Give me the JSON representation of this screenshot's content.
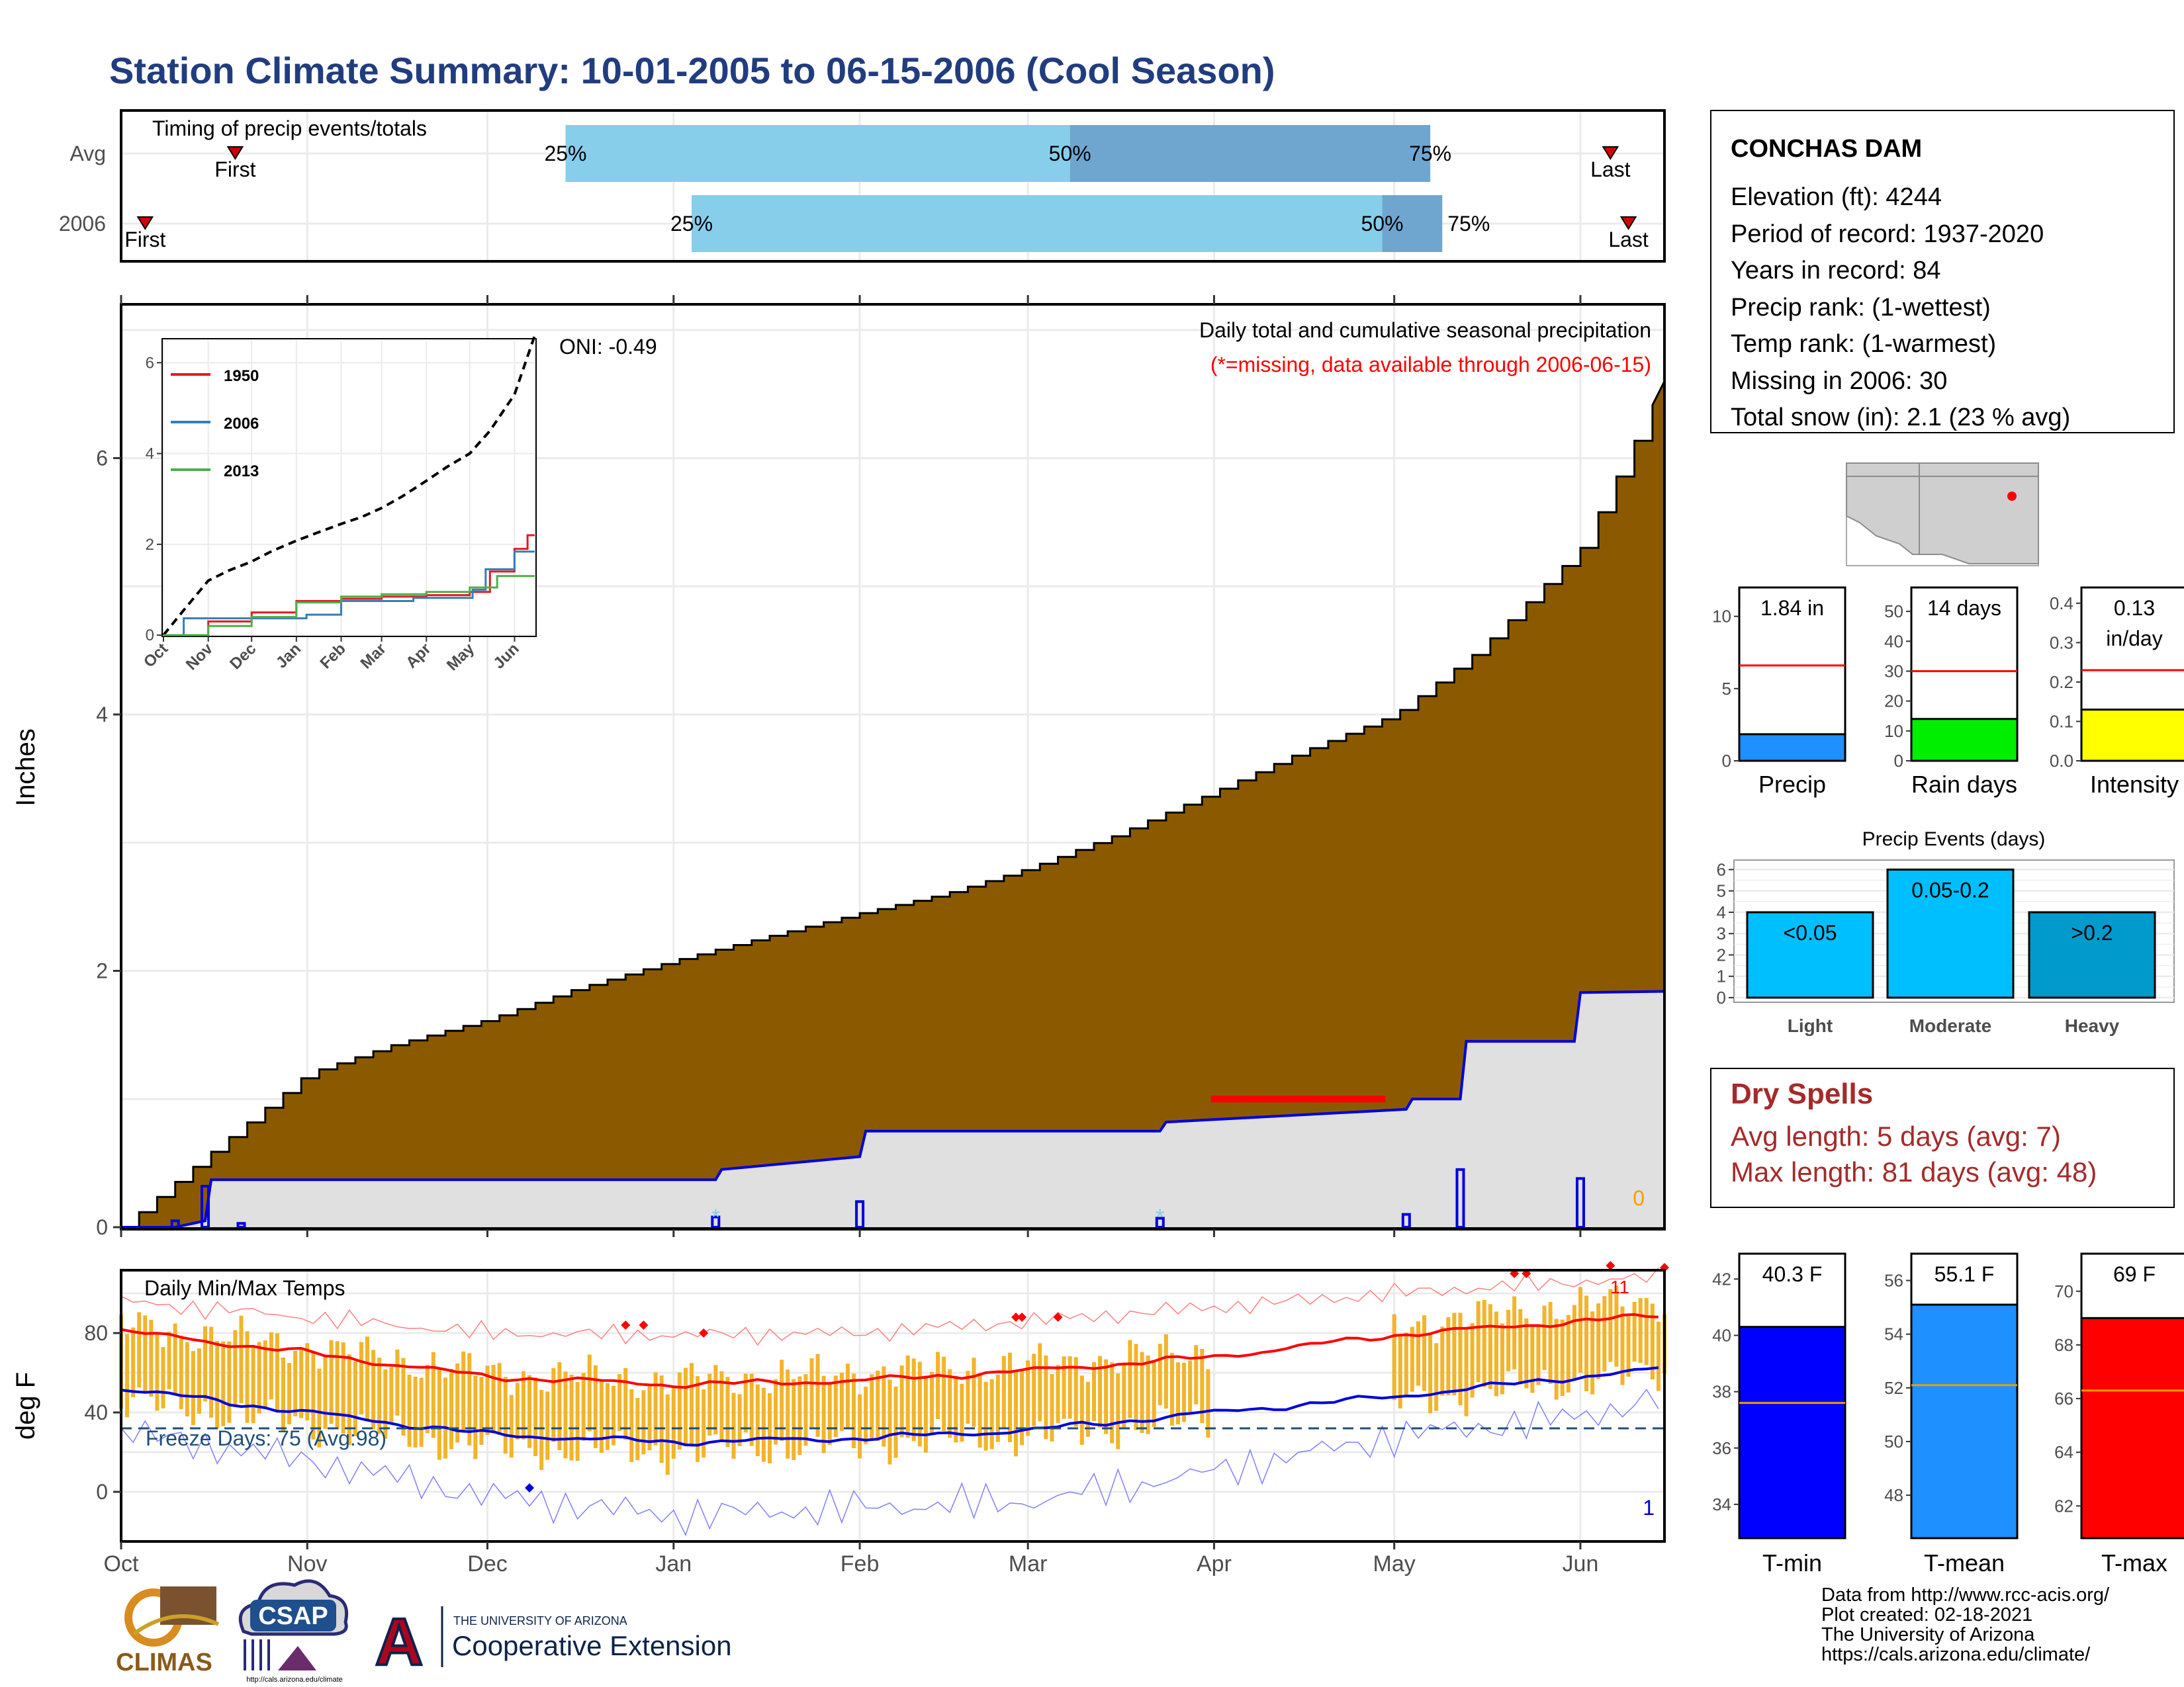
{
  "page_title": "Station Climate Summary: 10-01-2005 to 06-15-2006 (Cool Season)",
  "colors": {
    "title": "#213d7f",
    "precip_area": "#8b5a00",
    "gray_fill": "#e0e0e0",
    "light_blue": "#87ceeb",
    "mid_blue": "#6fa6cf",
    "temp_bar": "#f2b42a",
    "dry_spells": "#a52a2a",
    "freeze": "#1f4e79"
  },
  "station": {
    "name": "CONCHAS DAM",
    "lines": [
      "Elevation (ft): 4244",
      "Period of record: 1937-2020",
      "Years in record: 84",
      "Precip rank:  (1-wettest)",
      "Temp rank:  (1-warmest)",
      "Missing in 2006: 30",
      "Total snow (in): 2.1 (23 % avg)"
    ]
  },
  "timing": {
    "title": "Timing of precip events/totals",
    "rows": [
      {
        "label": "Avg",
        "first": "First",
        "last": "Last",
        "q25": "25%",
        "q50": "50%",
        "q75": "75%"
      },
      {
        "label": "2006",
        "first": "First",
        "last": "Last",
        "q25": "25%",
        "q50": "50%",
        "q75": "75%"
      }
    ]
  },
  "precip_panel": {
    "title": "Daily total and cumulative seasonal precipitation",
    "missing_note": "(*=missing, data available through 2006-06-15)",
    "oni": "ONI: -0.49",
    "ylabel": "Inches",
    "yticks": [
      "0",
      "2",
      "4",
      "6"
    ],
    "corner_value": "0"
  },
  "inset": {
    "legend": [
      "1950",
      "2006",
      "2013"
    ],
    "yticks": [
      "0",
      "2",
      "4",
      "6"
    ],
    "xticks": [
      "Oct",
      "Nov",
      "Dec",
      "Jan",
      "Feb",
      "Mar",
      "Apr",
      "May",
      "Jun"
    ]
  },
  "temp_panel": {
    "title": "Daily Min/Max Temps",
    "ylabel": "deg F",
    "yticks": [
      "0",
      "40",
      "80"
    ],
    "freeze": "Freeze Days: 75 (Avg:98)",
    "corner_low": "1",
    "corner_high": "11"
  },
  "months": [
    "Oct",
    "Nov",
    "Dec",
    "Jan",
    "Feb",
    "Mar",
    "Apr",
    "May",
    "Jun"
  ],
  "chart_data": [
    {
      "type": "bar",
      "title": "Timing of precip events/totals",
      "categories": [
        "Avg",
        "2006"
      ],
      "series": [
        {
          "name": "25%",
          "values": [
            "2005-12-14",
            "2006-01-04"
          ]
        },
        {
          "name": "50%",
          "values": [
            "2006-03-08",
            "2006-04-29"
          ]
        },
        {
          "name": "75%",
          "values": [
            "2006-05-07",
            "2006-05-09"
          ]
        }
      ]
    },
    {
      "type": "area",
      "title": "Daily total and cumulative seasonal precipitation",
      "ylabel": "Inches",
      "ylim": [
        0,
        7.2
      ],
      "avg_cumulative": {
        "x": [
          "2005-10-01",
          "2005-10-15",
          "2005-11-01",
          "2005-11-15",
          "2005-12-01",
          "2005-12-15",
          "2006-01-01",
          "2006-01-15",
          "2006-02-01",
          "2006-02-15",
          "2006-03-01",
          "2006-03-15",
          "2006-04-01",
          "2006-04-15",
          "2006-05-01",
          "2006-05-15",
          "2006-06-01",
          "2006-06-15"
        ],
        "y": [
          0,
          0.55,
          1.2,
          1.42,
          1.62,
          1.85,
          2.08,
          2.25,
          2.45,
          2.6,
          2.8,
          3.05,
          3.4,
          3.7,
          4.0,
          4.5,
          5.3,
          6.6
        ]
      },
      "obs_cumulative": {
        "x": [
          "2005-10-01",
          "2005-10-10",
          "2005-10-15",
          "2005-10-16",
          "2006-01-08",
          "2006-01-09",
          "2006-02-01",
          "2006-02-02",
          "2006-03-23",
          "2006-03-24",
          "2006-05-03",
          "2006-05-04",
          "2006-05-12",
          "2006-05-13",
          "2006-05-31",
          "2006-06-01",
          "2006-06-15"
        ],
        "y": [
          0,
          0,
          0.05,
          0.37,
          0.37,
          0.45,
          0.55,
          0.75,
          0.75,
          0.82,
          0.92,
          1.0,
          1.0,
          1.45,
          1.45,
          1.83,
          1.84
        ]
      },
      "daily_bars": {
        "x": [
          "2005-10-10",
          "2005-10-15",
          "2005-10-21",
          "2006-01-08",
          "2006-02-01",
          "2006-03-23",
          "2006-05-03",
          "2006-05-12",
          "2006-06-01"
        ],
        "y": [
          0.05,
          0.32,
          0.03,
          0.08,
          0.2,
          0.07,
          0.1,
          0.45,
          0.38
        ]
      },
      "missing_range": [
        "2006-04-01",
        "2006-04-30"
      ]
    },
    {
      "type": "line",
      "title": "",
      "series": [
        {
          "name": "1950",
          "x": [
            "2005-10-01",
            "2005-11-01",
            "2005-12-01",
            "2006-01-01",
            "2006-02-01",
            "2006-03-01",
            "2006-04-01",
            "2006-05-01",
            "2006-05-15",
            "2006-06-01",
            "2006-06-10",
            "2006-06-15"
          ],
          "y": [
            0,
            0.3,
            0.5,
            0.75,
            0.8,
            0.85,
            0.88,
            0.95,
            1.4,
            1.9,
            2.2,
            2.2
          ]
        },
        {
          "name": "2006",
          "x": [
            "2005-10-01",
            "2005-10-15",
            "2006-01-08",
            "2006-02-01",
            "2006-03-23",
            "2006-05-03",
            "2006-05-12",
            "2006-06-01",
            "2006-06-15"
          ],
          "y": [
            0,
            0.37,
            0.45,
            0.75,
            0.82,
            1.0,
            1.45,
            1.84,
            1.84
          ]
        },
        {
          "name": "2013",
          "x": [
            "2005-10-01",
            "2005-11-01",
            "2005-12-01",
            "2006-01-01",
            "2006-02-01",
            "2006-03-01",
            "2006-04-01",
            "2006-05-01",
            "2006-05-20",
            "2006-06-15"
          ],
          "y": [
            0,
            0.2,
            0.4,
            0.72,
            0.85,
            0.9,
            0.95,
            1.05,
            1.3,
            1.3
          ]
        }
      ],
      "avg": {
        "x": [
          "2005-10-01",
          "2005-10-15",
          "2005-11-01",
          "2005-11-15",
          "2005-12-01",
          "2005-12-15",
          "2006-01-01",
          "2006-01-15",
          "2006-02-01",
          "2006-02-15",
          "2006-03-01",
          "2006-03-15",
          "2006-04-01",
          "2006-04-15",
          "2006-05-01",
          "2006-05-15",
          "2006-06-01",
          "2006-06-15"
        ],
        "y": [
          0,
          0.55,
          1.2,
          1.42,
          1.62,
          1.85,
          2.08,
          2.25,
          2.45,
          2.6,
          2.8,
          3.05,
          3.4,
          3.7,
          4.0,
          4.5,
          5.3,
          6.6
        ]
      },
      "xticks": [
        "Oct",
        "Nov",
        "Dec",
        "Jan",
        "Feb",
        "Mar",
        "Apr",
        "May",
        "Jun"
      ],
      "ylim": [
        0,
        6.5
      ]
    },
    {
      "type": "line",
      "title": "Daily Min/Max Temps",
      "ylabel": "deg F",
      "ylim": [
        -25,
        115
      ],
      "series": [
        {
          "name": "avg max",
          "x": [
            "2005-10-01",
            "2005-11-01",
            "2005-12-01",
            "2006-01-01",
            "2006-02-01",
            "2006-03-01",
            "2006-04-01",
            "2006-05-01",
            "2006-06-01",
            "2006-06-15"
          ],
          "y": [
            81,
            70,
            58,
            54,
            56,
            61,
            68,
            79,
            86,
            89
          ]
        },
        {
          "name": "avg min",
          "x": [
            "2005-10-01",
            "2005-11-01",
            "2005-12-01",
            "2006-01-01",
            "2006-02-01",
            "2006-03-01",
            "2006-04-01",
            "2006-05-01",
            "2006-06-01",
            "2006-06-15"
          ],
          "y": [
            52,
            40,
            29,
            25,
            27,
            31,
            40,
            48,
            58,
            62
          ]
        },
        {
          "name": "record max",
          "x": [
            "2005-10-01",
            "2005-11-01",
            "2005-12-01",
            "2006-01-01",
            "2006-02-01",
            "2006-03-01",
            "2006-04-01",
            "2006-05-01",
            "2006-06-01",
            "2006-06-15"
          ],
          "y": [
            96,
            88,
            80,
            79,
            80,
            86,
            93,
            100,
            106,
            108
          ]
        },
        {
          "name": "record min",
          "x": [
            "2005-10-01",
            "2005-11-01",
            "2005-12-01",
            "2006-01-01",
            "2006-02-01",
            "2006-03-01",
            "2006-04-01",
            "2006-05-01",
            "2006-06-01",
            "2006-06-15"
          ],
          "y": [
            30,
            16,
            -2,
            -12,
            -8,
            -5,
            10,
            28,
            38,
            48
          ]
        }
      ],
      "daily_range": {
        "max_y": [
          84,
          73,
          60,
          56,
          60,
          64,
          71,
          84,
          94,
          97
        ],
        "min_y": [
          46,
          34,
          22,
          20,
          24,
          28,
          36,
          45,
          56,
          60
        ]
      },
      "freeze_line": 32,
      "xticks": [
        "Oct",
        "Nov",
        "Dec",
        "Jan",
        "Feb",
        "Mar",
        "Apr",
        "May",
        "Jun"
      ]
    },
    {
      "type": "bar",
      "title": "",
      "panels": [
        {
          "category": "Precip",
          "value": 1.84,
          "label": "1.84 in",
          "ref": 6.6,
          "ylim": [
            0,
            12
          ],
          "yticks": [
            "0",
            "5",
            "10"
          ]
        },
        {
          "category": "Rain days",
          "value": 14,
          "label": "14 days",
          "ref": 30,
          "ylim": [
            0,
            58
          ],
          "yticks": [
            "0",
            "10",
            "20",
            "30",
            "40",
            "50"
          ]
        },
        {
          "category": "Intensity",
          "value": 0.13,
          "label": "0.13 in/day",
          "ref": 0.23,
          "ylim": [
            0,
            0.44
          ],
          "yticks": [
            "0.0",
            "0.1",
            "0.2",
            "0.3",
            "0.4"
          ]
        }
      ]
    },
    {
      "type": "bar",
      "title": "Precip Events (days)",
      "categories": [
        "Light",
        "Moderate",
        "Heavy"
      ],
      "values": [
        4,
        6,
        4
      ],
      "bar_labels": [
        "<0.05",
        "0.05-0.2",
        ">0.2"
      ],
      "yticks": [
        "0",
        "1",
        "2",
        "3",
        "4",
        "5",
        "6"
      ],
      "ylim": [
        0,
        6.4
      ]
    },
    {
      "type": "bar",
      "title": "",
      "panels": [
        {
          "category": "T-min",
          "value": 40.3,
          "label": "40.3 F",
          "ref": 37.6,
          "ylim": [
            32.8,
            42.9
          ],
          "yticks": [
            "34",
            "36",
            "38",
            "40",
            "42"
          ]
        },
        {
          "category": "T-mean",
          "value": 55.1,
          "label": "55.1 F",
          "ref": 52.1,
          "ylim": [
            46.4,
            57
          ],
          "yticks": [
            "48",
            "50",
            "52",
            "54",
            "56"
          ]
        },
        {
          "category": "T-max",
          "value": 69,
          "label": "69 F",
          "ref": 66.3,
          "ylim": [
            60.8,
            71.4
          ],
          "yticks": [
            "62",
            "64",
            "66",
            "68",
            "70"
          ]
        }
      ]
    }
  ],
  "dry_spells": {
    "title": "Dry Spells",
    "avg": "Avg length: 5 days (avg: 7)",
    "max": "Max length: 81 days (avg: 48)"
  },
  "logos": {
    "climas": "CLIMAS",
    "csap": "CSAP",
    "csap_url": "http://cals.arizona.edu/climate",
    "ua_small": "THE UNIVERSITY OF ARIZONA",
    "ua_big": "Cooperative Extension",
    "ua_letter": "A"
  },
  "footer": [
    "Data from http://www.rcc-acis.org/",
    "Plot created: 02-18-2021",
    "The University of Arizona",
    "https://cals.arizona.edu/climate/"
  ]
}
